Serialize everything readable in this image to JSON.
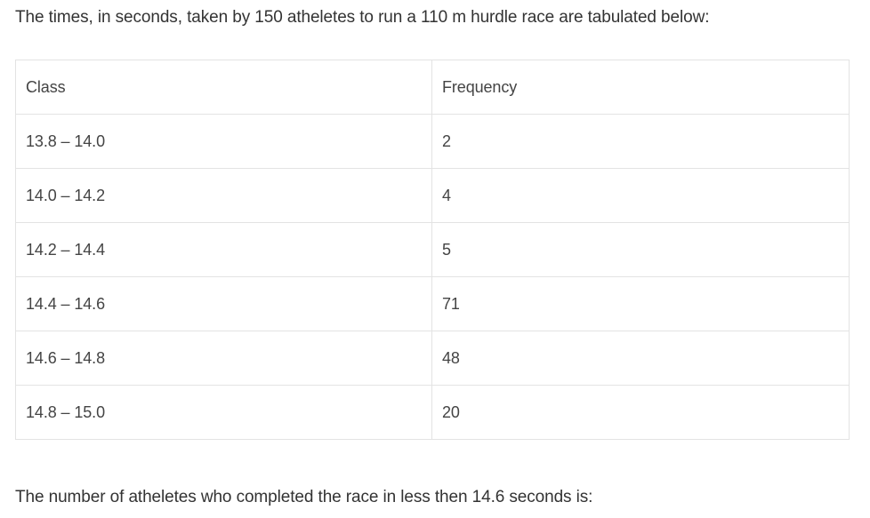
{
  "intro": "The times, in seconds, taken by 150 atheletes to run a 110 m hurdle race are tabulated below:",
  "table": {
    "headers": [
      "Class",
      "Frequency"
    ],
    "rows": [
      [
        "13.8 – 14.0",
        "2"
      ],
      [
        "14.0 – 14.2",
        "4"
      ],
      [
        "14.2 – 14.4",
        "5"
      ],
      [
        "14.4 – 14.6",
        "71"
      ],
      [
        "14.6 – 14.8",
        "48"
      ],
      [
        "14.8 – 15.0",
        "20"
      ]
    ]
  },
  "question": "The number of atheletes who completed the race in less then 14.6 seconds is:"
}
